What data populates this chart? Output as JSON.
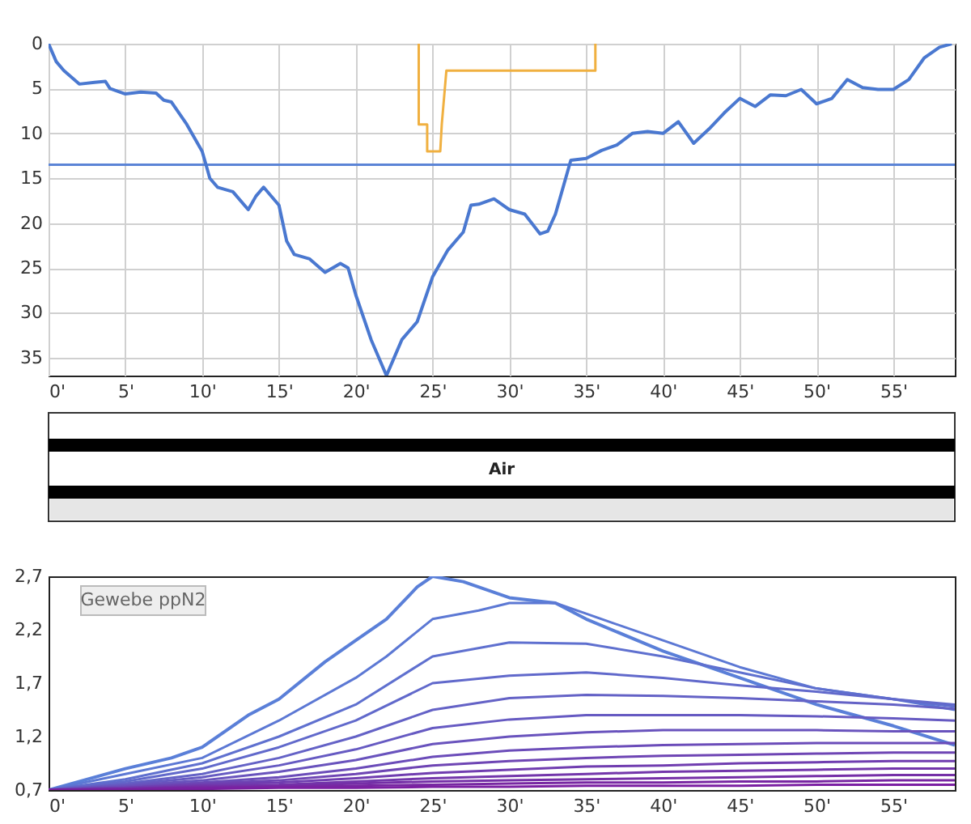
{
  "chart_data": [
    {
      "type": "line",
      "xlim": [
        0,
        59
      ],
      "ylim": [
        37,
        0
      ],
      "grid": true,
      "xticks": [
        {
          "value": 0,
          "label": "0'"
        },
        {
          "value": 5,
          "label": "5'"
        },
        {
          "value": 10,
          "label": "10'"
        },
        {
          "value": 15,
          "label": "15'"
        },
        {
          "value": 20,
          "label": "20'"
        },
        {
          "value": 25,
          "label": "25'"
        },
        {
          "value": 30,
          "label": "30'"
        },
        {
          "value": 35,
          "label": "35'"
        },
        {
          "value": 40,
          "label": "40'"
        },
        {
          "value": 45,
          "label": "45'"
        },
        {
          "value": 50,
          "label": "50'"
        },
        {
          "value": 55,
          "label": "55'"
        }
      ],
      "yticks": [
        0,
        5,
        10,
        15,
        20,
        25,
        30,
        35
      ],
      "ref_lines": [
        {
          "axis": "y",
          "value": 13.5,
          "color": "#5b84d6"
        }
      ],
      "series": [
        {
          "color": "#4a78d0",
          "x": [
            0,
            0.5,
            1,
            2,
            3,
            3.7,
            4,
            5,
            6,
            7,
            7.5,
            8,
            9,
            10,
            10.5,
            11,
            12,
            13,
            13.5,
            14,
            15,
            15.5,
            16,
            17,
            18,
            19,
            19.5,
            20,
            21,
            22,
            22.5,
            23,
            24,
            25,
            26,
            27,
            27.5,
            28,
            29,
            30,
            31,
            32,
            32.5,
            33,
            34,
            35,
            36,
            37,
            38,
            39,
            40,
            41,
            42,
            43,
            44,
            45,
            46,
            47,
            48,
            49,
            50,
            51,
            52,
            53,
            54,
            55,
            56,
            57,
            58,
            58.8
          ],
          "values": [
            0,
            2,
            3,
            4.5,
            4.3,
            4.2,
            5,
            5.6,
            5.4,
            5.5,
            6.3,
            6.5,
            9,
            12,
            15,
            16,
            16.5,
            18.5,
            17,
            16,
            18,
            22,
            23.5,
            24,
            25.5,
            24.5,
            25,
            28,
            33,
            37,
            35,
            33,
            31,
            26,
            23,
            21,
            18,
            17.9,
            17.3,
            18.5,
            19,
            21.2,
            20.9,
            19,
            13,
            12.8,
            11.9,
            11.3,
            10,
            9.8,
            10,
            8.7,
            11.1,
            9.5,
            7.7,
            6.1,
            7,
            5.7,
            5.8,
            5.1,
            6.7,
            6.1,
            4,
            4.9,
            5.1,
            5.1,
            4,
            1.6,
            0.4,
            0
          ]
        },
        {
          "color": "#f0b040",
          "x": [
            24.1,
            24.1,
            24.65,
            24.65,
            25.5,
            25.6,
            25.9,
            35.6,
            35.6
          ],
          "values": [
            0,
            9,
            9,
            12,
            12,
            9,
            3,
            3,
            0
          ]
        }
      ]
    },
    {
      "type": "other",
      "annotations": [
        "Air"
      ]
    },
    {
      "type": "line",
      "xlim": [
        0,
        59
      ],
      "ylim": [
        0.7,
        2.7
      ],
      "grid": false,
      "xticks": [
        {
          "value": 0,
          "label": "0'"
        },
        {
          "value": 5,
          "label": "5'"
        },
        {
          "value": 10,
          "label": "10'"
        },
        {
          "value": 15,
          "label": "15'"
        },
        {
          "value": 20,
          "label": "20'"
        },
        {
          "value": 25,
          "label": "25'"
        },
        {
          "value": 30,
          "label": "30'"
        },
        {
          "value": 35,
          "label": "35'"
        },
        {
          "value": 40,
          "label": "40'"
        },
        {
          "value": 45,
          "label": "45'"
        },
        {
          "value": 50,
          "label": "50'"
        },
        {
          "value": 55,
          "label": "55'"
        }
      ],
      "yticks": [
        {
          "value": 0.7,
          "label": "0,7"
        },
        {
          "value": 1.2,
          "label": "1,2"
        },
        {
          "value": 1.7,
          "label": "1,7"
        },
        {
          "value": 2.2,
          "label": "2,2"
        },
        {
          "value": 2.7,
          "label": "2,7"
        }
      ],
      "annotations": [
        "Gewebe ppN2"
      ],
      "x": [
        0,
        5,
        10,
        15,
        20,
        25,
        30,
        35,
        40,
        45,
        50,
        55,
        59
      ],
      "series": [
        {
          "color": "#5a7fd8",
          "x": [
            0,
            5,
            8,
            10,
            13,
            15,
            18,
            20,
            22,
            24,
            25,
            27,
            30,
            33,
            35,
            40,
            45,
            50,
            55,
            59
          ],
          "values": [
            0.7,
            0.9,
            1.0,
            1.1,
            1.4,
            1.55,
            1.9,
            2.1,
            2.3,
            2.6,
            2.7,
            2.65,
            2.5,
            2.45,
            2.3,
            2.0,
            1.75,
            1.5,
            1.3,
            1.12
          ]
        },
        {
          "color": "#5c78d4",
          "x": [
            0,
            5,
            10,
            15,
            20,
            22,
            25,
            28,
            30,
            33,
            35,
            40,
            45,
            50,
            55,
            59
          ],
          "values": [
            0.7,
            0.85,
            1.0,
            1.35,
            1.75,
            1.95,
            2.3,
            2.38,
            2.45,
            2.45,
            2.35,
            2.1,
            1.85,
            1.65,
            1.55,
            1.45
          ]
        },
        {
          "color": "#5f70cf",
          "values": [
            0.7,
            0.8,
            0.95,
            1.2,
            1.5,
            1.95,
            2.08,
            2.07,
            1.95,
            1.8,
            1.65,
            1.55,
            1.48
          ]
        },
        {
          "color": "#6169cb",
          "values": [
            0.7,
            0.78,
            0.9,
            1.1,
            1.35,
            1.7,
            1.77,
            1.8,
            1.75,
            1.68,
            1.62,
            1.55,
            1.5
          ]
        },
        {
          "color": "#6462c6",
          "values": [
            0.7,
            0.76,
            0.85,
            1.0,
            1.2,
            1.45,
            1.56,
            1.59,
            1.58,
            1.56,
            1.53,
            1.5,
            1.46
          ]
        },
        {
          "color": "#665ac2",
          "values": [
            0.7,
            0.75,
            0.82,
            0.93,
            1.08,
            1.28,
            1.36,
            1.4,
            1.4,
            1.4,
            1.39,
            1.37,
            1.35
          ]
        },
        {
          "color": "#6953bd",
          "values": [
            0.7,
            0.74,
            0.79,
            0.87,
            0.98,
            1.13,
            1.2,
            1.24,
            1.26,
            1.26,
            1.26,
            1.25,
            1.25
          ]
        },
        {
          "color": "#6b4cb9",
          "values": [
            0.7,
            0.73,
            0.77,
            0.82,
            0.9,
            1.01,
            1.07,
            1.1,
            1.12,
            1.13,
            1.14,
            1.14,
            1.14
          ]
        },
        {
          "color": "#6e45b4",
          "values": [
            0.7,
            0.72,
            0.76,
            0.79,
            0.85,
            0.93,
            0.97,
            1.0,
            1.02,
            1.03,
            1.04,
            1.05,
            1.05
          ]
        },
        {
          "color": "#703db0",
          "values": [
            0.7,
            0.72,
            0.75,
            0.77,
            0.81,
            0.86,
            0.89,
            0.92,
            0.93,
            0.95,
            0.96,
            0.97,
            0.97
          ]
        },
        {
          "color": "#7336ab",
          "values": [
            0.7,
            0.71,
            0.74,
            0.75,
            0.78,
            0.81,
            0.83,
            0.85,
            0.87,
            0.88,
            0.89,
            0.9,
            0.9
          ]
        },
        {
          "color": "#752fa7",
          "values": [
            0.7,
            0.71,
            0.73,
            0.74,
            0.76,
            0.78,
            0.79,
            0.8,
            0.81,
            0.82,
            0.83,
            0.84,
            0.84
          ]
        },
        {
          "color": "#7827a2",
          "values": [
            0.7,
            0.71,
            0.72,
            0.73,
            0.74,
            0.75,
            0.76,
            0.77,
            0.77,
            0.78,
            0.78,
            0.79,
            0.79
          ]
        },
        {
          "color": "#7b1fa2",
          "values": [
            0.7,
            0.7,
            0.71,
            0.72,
            0.72,
            0.73,
            0.73,
            0.74,
            0.74,
            0.74,
            0.75,
            0.75,
            0.75
          ]
        }
      ]
    }
  ]
}
